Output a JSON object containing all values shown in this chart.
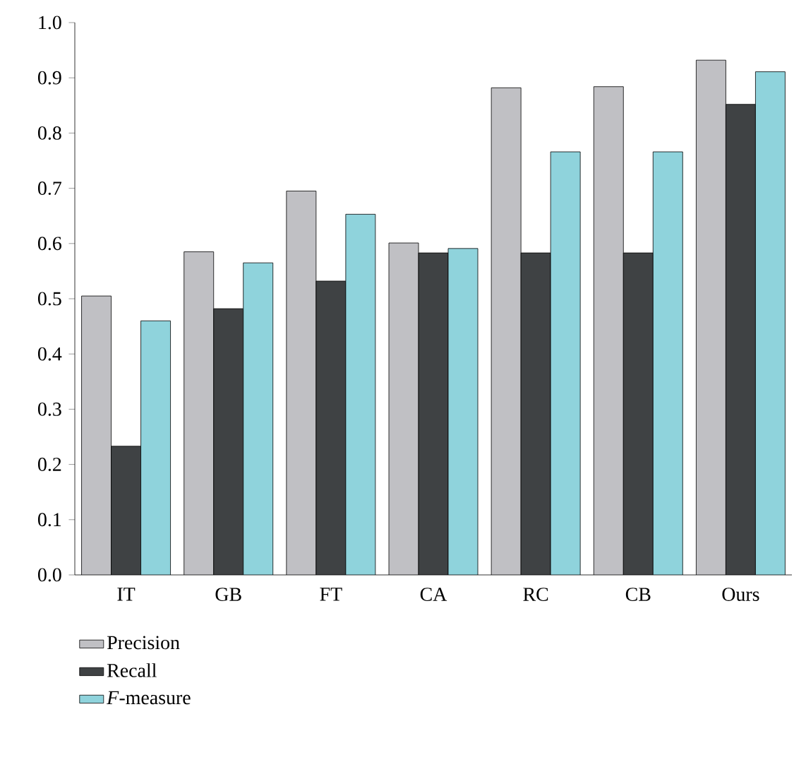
{
  "chart_data": {
    "type": "bar",
    "categories": [
      "IT",
      "GB",
      "FT",
      "CA",
      "RC",
      "CB",
      "Ours"
    ],
    "series": [
      {
        "name": "Precision",
        "color": "#c0c0c4",
        "values": [
          0.505,
          0.585,
          0.695,
          0.601,
          0.882,
          0.884,
          0.932
        ]
      },
      {
        "name": "Recall",
        "color": "#3f4244",
        "values": [
          0.233,
          0.482,
          0.532,
          0.583,
          0.583,
          0.583,
          0.852
        ]
      },
      {
        "name": "*F*-measure",
        "color": "#8fd3dc",
        "values": [
          0.46,
          0.565,
          0.653,
          0.591,
          0.766,
          0.766,
          0.911
        ]
      }
    ],
    "ylim": [
      0,
      1
    ],
    "yticks": [
      {
        "value": 0,
        "label": "0.0"
      },
      {
        "value": 0.1,
        "label": "0.1"
      },
      {
        "value": 0.2,
        "label": "0.2"
      },
      {
        "value": 0.3,
        "label": "0.3"
      },
      {
        "value": 0.4,
        "label": "0.4"
      },
      {
        "value": 0.5,
        "label": "0.5"
      },
      {
        "value": 0.6,
        "label": "0.6"
      },
      {
        "value": 0.7,
        "label": "0.7"
      },
      {
        "value": 0.8,
        "label": "0.8"
      },
      {
        "value": 0.9,
        "label": "0.9"
      },
      {
        "value": 1,
        "label": "1.0"
      }
    ],
    "legend": "bottom left"
  }
}
